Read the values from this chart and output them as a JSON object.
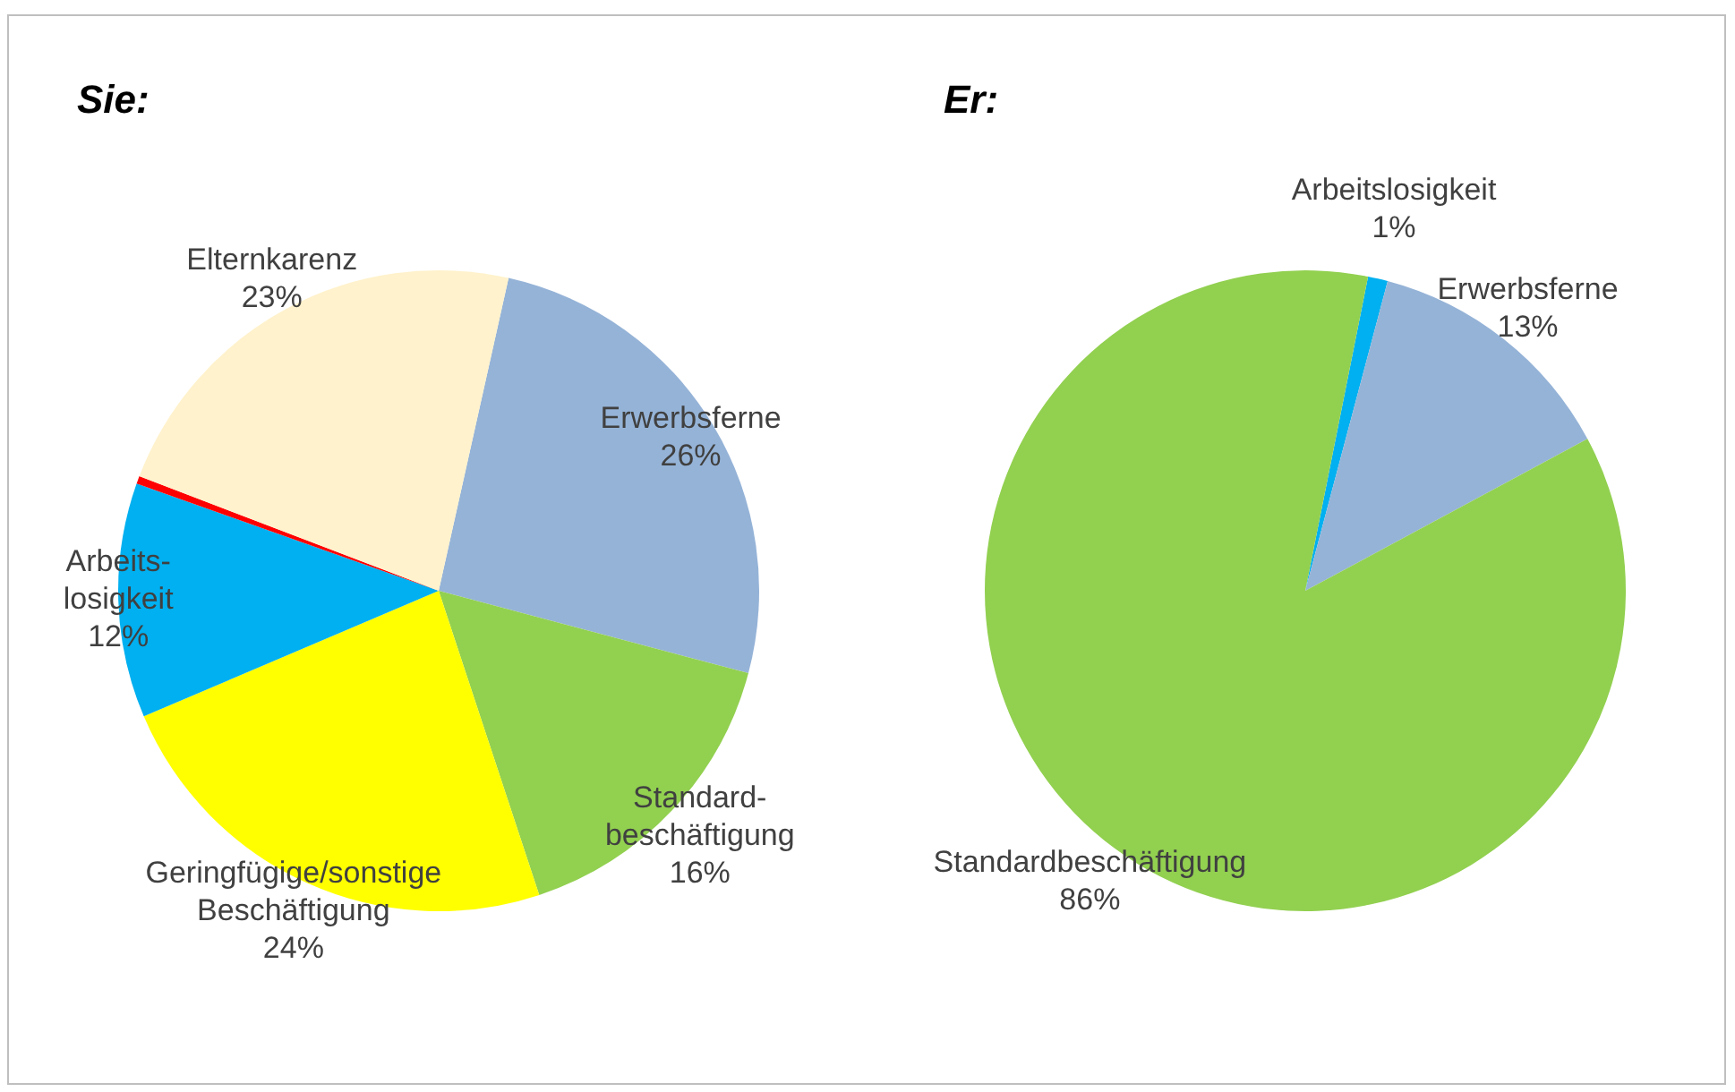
{
  "chart_data": [
    {
      "type": "pie",
      "title": "Sie:",
      "categories": [
        "Erwerbsferne",
        "Standard-\nbeschäftigung",
        "Geringfügige/sonstige\nBeschäftigung",
        "Arbeits-\nlosigkeit",
        null,
        "Elternkarenz"
      ],
      "values": [
        26,
        16,
        24,
        12,
        0.4,
        23
      ],
      "value_labels": [
        "26%",
        "16%",
        "24%",
        "12%",
        null,
        "23%"
      ],
      "colors": [
        "#95b3d7",
        "#92d050",
        "#ffff00",
        "#00b0f0",
        "#ff0000",
        "#fff2cc"
      ],
      "legend": false
    },
    {
      "type": "pie",
      "title": "Er:",
      "categories": [
        "Arbeitslosigkeit",
        "Erwerbsferne",
        "Standardbeschäftigung"
      ],
      "values": [
        1,
        13,
        86
      ],
      "value_labels": [
        "1%",
        "13%",
        "86%"
      ],
      "colors": [
        "#00b0f0",
        "#95b3d7",
        "#92d050"
      ],
      "legend": false
    }
  ]
}
